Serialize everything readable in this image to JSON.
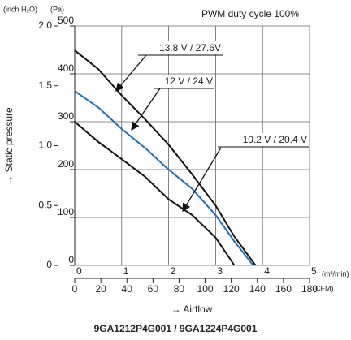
{
  "chart_data": {
    "type": "line",
    "title": "9GA1212P4G001 / 9GA1224P4G001",
    "subtitle": "PWM duty cycle 100%",
    "y_label": "→ Static pressure",
    "y_unit": "(Pa)",
    "y2_unit": "(inch H₂O)",
    "x_label": "→ Airflow",
    "x_unit": "(m³/min)",
    "x2_unit": "(CFM)",
    "xlim": [
      0,
      5
    ],
    "xticks": [
      0,
      1,
      2,
      3,
      4,
      5
    ],
    "x2lim": [
      0,
      180
    ],
    "x2ticks": [
      0,
      20,
      40,
      60,
      80,
      100,
      120,
      140,
      160,
      180
    ],
    "ylim": [
      0,
      500
    ],
    "yticks": [
      0,
      100,
      200,
      300,
      400,
      500
    ],
    "y2lim": [
      0,
      2
    ],
    "y2ticks": [
      0,
      0.5,
      {
        "value": 1,
        "label": "1.0"
      },
      1.5,
      {
        "value": 2,
        "label": "2.0"
      }
    ],
    "grid": true,
    "series": [
      {
        "name": "13.8 V / 27.6V",
        "color": "#111111",
        "x": [
          0,
          0.5,
          1,
          1.5,
          2,
          2.5,
          3,
          3.4,
          3.85
        ],
        "values": [
          449,
          410,
          355,
          305,
          252,
          190,
          125,
          60,
          0
        ]
      },
      {
        "name": "12 V / 24 V",
        "color": "#1f6fb8",
        "x": [
          0,
          0.5,
          1,
          1.5,
          2,
          2.5,
          3,
          3.4,
          3.8
        ],
        "values": [
          364,
          330,
          285,
          245,
          200,
          160,
          105,
          50,
          0
        ]
      },
      {
        "name": "10.2 V / 20.4 V",
        "color": "#111111",
        "x": [
          0,
          0.5,
          1,
          1.5,
          2,
          2.5,
          3,
          3.4
        ],
        "values": [
          300,
          258,
          222,
          185,
          138,
          105,
          58,
          0
        ]
      }
    ]
  }
}
